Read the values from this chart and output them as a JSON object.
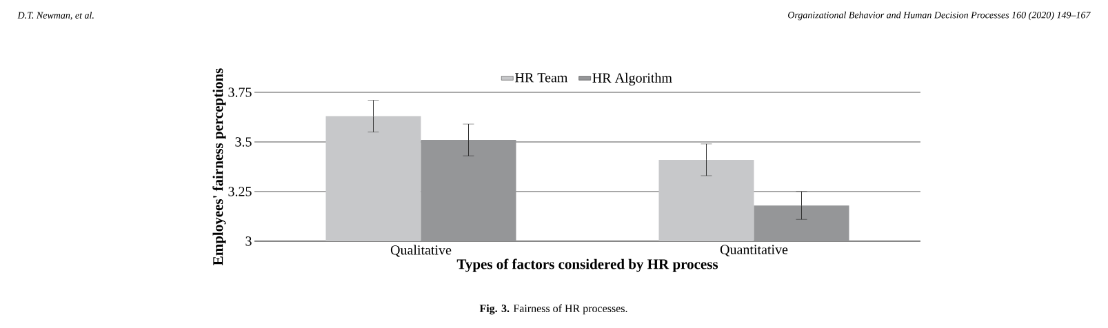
{
  "chart_data": {
    "type": "bar",
    "xlabel": "Types of factors considered by HR process",
    "ylabel": "Employees' fairness perceptions",
    "categories": [
      "Qualitative",
      "Quantitative"
    ],
    "series": [
      {
        "name": "HR Team",
        "color": "#c7c8ca",
        "values": [
          3.63,
          3.41
        ],
        "errors": [
          0.08,
          0.08
        ]
      },
      {
        "name": "HR Algorithm",
        "color": "#959698",
        "values": [
          3.51,
          3.18
        ],
        "errors": [
          0.08,
          0.07
        ]
      }
    ],
    "ylim": [
      3,
      3.75
    ],
    "yticks": [
      3,
      3.25,
      3.5,
      3.75
    ],
    "grid": "y",
    "legend": "top",
    "annotations": [
      "D.T. Newman, et al.",
      "Organizational Behavior and Human Decision Processes 160 (2020) 149–167",
      "**Fig. 3.** Fairness of HR processes."
    ]
  }
}
